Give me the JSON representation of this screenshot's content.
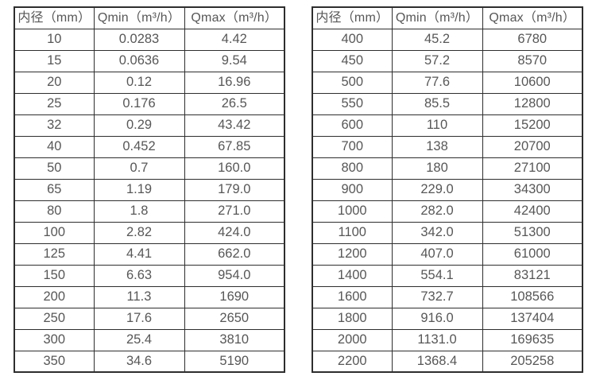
{
  "colors": {
    "border": "#2e2e2e",
    "text": "#575757",
    "background": "#ffffff"
  },
  "tables": [
    {
      "name": "flow-spec-table-small-diameters",
      "headers": [
        "内径（mm）",
        "Qmin（m³/h）",
        "Qmax（m³/h）"
      ],
      "rows": [
        [
          "10",
          "0.0283",
          "4.42"
        ],
        [
          "15",
          "0.0636",
          "9.54"
        ],
        [
          "20",
          "0.12",
          "16.96"
        ],
        [
          "25",
          "0.176",
          "26.5"
        ],
        [
          "32",
          "0.29",
          "43.42"
        ],
        [
          "40",
          "0.452",
          "67.85"
        ],
        [
          "50",
          "0.7",
          "160.0"
        ],
        [
          "65",
          "1.19",
          "179.0"
        ],
        [
          "80",
          "1.8",
          "271.0"
        ],
        [
          "100",
          "2.82",
          "424.0"
        ],
        [
          "125",
          "4.41",
          "662.0"
        ],
        [
          "150",
          "6.63",
          "954.0"
        ],
        [
          "200",
          "11.3",
          "1690"
        ],
        [
          "250",
          "17.6",
          "2650"
        ],
        [
          "300",
          "25.4",
          "3810"
        ],
        [
          "350",
          "34.6",
          "5190"
        ]
      ]
    },
    {
      "name": "flow-spec-table-large-diameters",
      "headers": [
        "内径（mm）",
        "Qmin（m³/h）",
        "Qmax（m³/h）"
      ],
      "rows": [
        [
          "400",
          "45.2",
          "6780"
        ],
        [
          "450",
          "57.2",
          "8570"
        ],
        [
          "500",
          "77.6",
          "10600"
        ],
        [
          "550",
          "85.5",
          "12800"
        ],
        [
          "600",
          "110",
          "15200"
        ],
        [
          "700",
          "138",
          "20700"
        ],
        [
          "800",
          "180",
          "27100"
        ],
        [
          "900",
          "229.0",
          "34300"
        ],
        [
          "1000",
          "282.0",
          "42400"
        ],
        [
          "1100",
          "342.0",
          "51300"
        ],
        [
          "1200",
          "407.0",
          "61000"
        ],
        [
          "1400",
          "554.1",
          "83121"
        ],
        [
          "1600",
          "732.7",
          "108566"
        ],
        [
          "1800",
          "916.0",
          "137404"
        ],
        [
          "2000",
          "1131.0",
          "169635"
        ],
        [
          "2200",
          "1368.4",
          "205258"
        ]
      ]
    }
  ]
}
